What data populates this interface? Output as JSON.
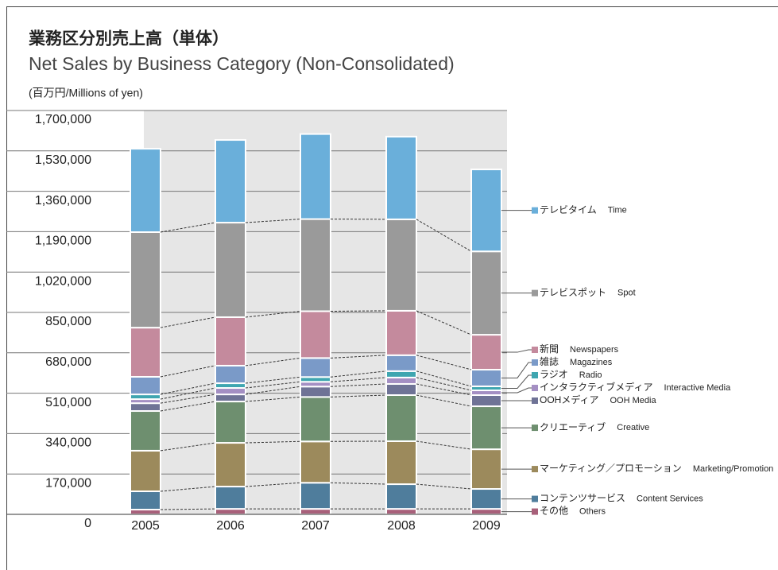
{
  "chart_data": {
    "type": "stacked_bar",
    "title": "業務区分別売上高（単体）",
    "subtitle": "Net Sales by Business Category (Non-Consolidated)",
    "unit_label": "(百万円/Millions of yen)",
    "categories": [
      "2005",
      "2006",
      "2007",
      "2008",
      "2009"
    ],
    "series": [
      {
        "name": "その他",
        "name_en": "Others",
        "color": "#a8607a",
        "values": [
          20000,
          23000,
          23000,
          23000,
          23000
        ]
      },
      {
        "name": "コンテンツサービス",
        "name_en": "Content Services",
        "color": "#4f7d9c",
        "values": [
          77000,
          94000,
          110000,
          104000,
          84000
        ]
      },
      {
        "name": "マーケティング／プロモーション",
        "name_en": "Marketing/Promotion",
        "color": "#9c8a5c",
        "values": [
          171000,
          184000,
          174000,
          181000,
          167000
        ]
      },
      {
        "name": "クリエーティブ",
        "name_en": "Creative",
        "color": "#6e8f6f",
        "values": [
          167000,
          174000,
          187000,
          194000,
          181000
        ]
      },
      {
        "name": "OOHメディア",
        "name_en": "OOH Media",
        "color": "#6f7396",
        "values": [
          33000,
          30000,
          44000,
          47000,
          47000
        ]
      },
      {
        "name": "インタラクティブメディア",
        "name_en": "Interactive Media",
        "color": "#a48fc3",
        "values": [
          17000,
          27000,
          20000,
          27000,
          20000
        ]
      },
      {
        "name": "ラジオ",
        "name_en": "Radio",
        "color": "#3fa6b0",
        "values": [
          20000,
          20000,
          20000,
          27000,
          17000
        ]
      },
      {
        "name": "雑誌",
        "name_en": "Magazines",
        "color": "#7a9ac8",
        "values": [
          74000,
          74000,
          80000,
          67000,
          70000
        ]
      },
      {
        "name": "新聞",
        "name_en": "Newspapers",
        "color": "#c48a9d",
        "values": [
          207000,
          204000,
          197000,
          187000,
          147000
        ]
      },
      {
        "name": "テレビスポット",
        "name_en": "Spot",
        "color": "#9a9a9a",
        "values": [
          402000,
          398000,
          388000,
          385000,
          351000
        ]
      },
      {
        "name": "テレビタイム",
        "name_en": "Time",
        "color": "#6aafda",
        "values": [
          351000,
          348000,
          358000,
          348000,
          345000
        ]
      }
    ],
    "ylim": [
      0,
      1700000
    ],
    "yticks": [
      0,
      {
        "value": 170000,
        "label": "170,000"
      },
      {
        "value": 340000,
        "label": "340,000"
      },
      {
        "value": 510000,
        "label": "510,000"
      },
      {
        "value": 680000,
        "label": "680,000"
      },
      {
        "value": 850000,
        "label": "850,000"
      },
      {
        "value": 1020000,
        "label": "1,020,000"
      },
      {
        "value": 1190000,
        "label": "1,190,000"
      },
      {
        "value": 1360000,
        "label": "1,360,000"
      },
      {
        "value": 1530000,
        "label": "1,530,000"
      },
      {
        "value": 1700000,
        "label": "1,700,000"
      }
    ],
    "grid": true
  }
}
